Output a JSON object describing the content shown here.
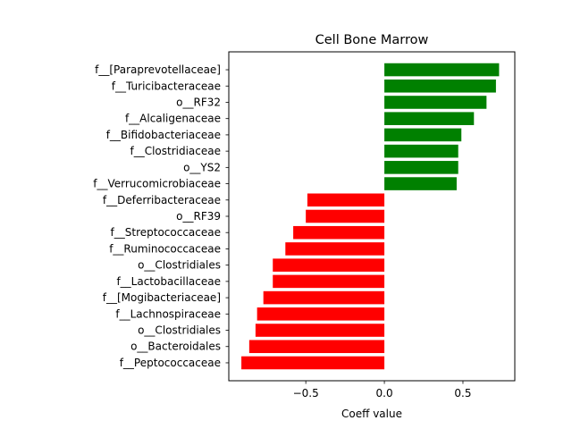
{
  "chart_data": {
    "type": "bar",
    "orientation": "horizontal",
    "title": "Cell Bone Marrow",
    "xlabel": "Coeff value",
    "ylabel": "",
    "xlim": [
      -0.99,
      0.83
    ],
    "xticks": [
      -0.5,
      0.0,
      0.5
    ],
    "xtick_labels": [
      "−0.5",
      "0.0",
      "0.5"
    ],
    "grid": false,
    "positive_color": "#008000",
    "negative_color": "#ff0000",
    "categories": [
      "f__[Paraprevotellaceae]",
      "f__Turicibacteraceae",
      "o__RF32",
      "f__Alcaligenaceae",
      "f__Bifidobacteriaceae",
      "f__Clostridiaceae",
      "o__YS2",
      "f__Verrucomicrobiaceae",
      "f__Deferribacteraceae",
      "o__RF39",
      "f__Streptococcaceae",
      "f__Ruminococcaceae",
      "o__Clostridiales",
      "f__Lactobacillaceae",
      "f__[Mogibacteriaceae]",
      "f__Lachnospiraceae",
      "o__Clostridiales",
      "o__Bacteroidales",
      "f__Peptococcaceae"
    ],
    "values": [
      0.73,
      0.71,
      0.65,
      0.57,
      0.49,
      0.47,
      0.47,
      0.46,
      -0.49,
      -0.5,
      -0.58,
      -0.63,
      -0.71,
      -0.71,
      -0.77,
      -0.81,
      -0.82,
      -0.86,
      -0.91
    ]
  }
}
